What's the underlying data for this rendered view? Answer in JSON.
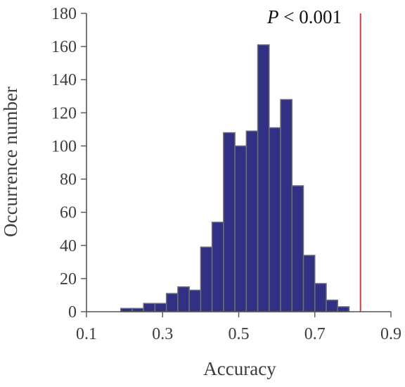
{
  "chart_data": {
    "type": "bar",
    "title": "",
    "xlabel": "Accuracy",
    "ylabel": "Occurrence number",
    "xlim": [
      0.1,
      0.9
    ],
    "ylim": [
      0,
      180
    ],
    "xticks": [
      0.1,
      0.3,
      0.5,
      0.7,
      0.9
    ],
    "xtick_labels": [
      "0.1",
      "0.3",
      "0.5",
      "0.7",
      "0.9"
    ],
    "yticks": [
      0,
      20,
      40,
      60,
      80,
      100,
      120,
      140,
      160,
      180
    ],
    "ytick_labels": [
      "0",
      "20",
      "40",
      "60",
      "80",
      "100",
      "120",
      "140",
      "160",
      "180"
    ],
    "bins": [
      {
        "start": 0.19,
        "end": 0.22,
        "value": 2
      },
      {
        "start": 0.22,
        "end": 0.25,
        "value": 2
      },
      {
        "start": 0.25,
        "end": 0.28,
        "value": 5
      },
      {
        "start": 0.28,
        "end": 0.31,
        "value": 5
      },
      {
        "start": 0.31,
        "end": 0.34,
        "value": 11
      },
      {
        "start": 0.34,
        "end": 0.37,
        "value": 15
      },
      {
        "start": 0.37,
        "end": 0.4,
        "value": 13
      },
      {
        "start": 0.4,
        "end": 0.43,
        "value": 39
      },
      {
        "start": 0.43,
        "end": 0.46,
        "value": 54
      },
      {
        "start": 0.46,
        "end": 0.49,
        "value": 108
      },
      {
        "start": 0.49,
        "end": 0.52,
        "value": 100
      },
      {
        "start": 0.52,
        "end": 0.55,
        "value": 109
      },
      {
        "start": 0.55,
        "end": 0.58,
        "value": 161
      },
      {
        "start": 0.58,
        "end": 0.61,
        "value": 111
      },
      {
        "start": 0.61,
        "end": 0.64,
        "value": 128
      },
      {
        "start": 0.64,
        "end": 0.67,
        "value": 76
      },
      {
        "start": 0.67,
        "end": 0.7,
        "value": 34
      },
      {
        "start": 0.7,
        "end": 0.73,
        "value": 17
      },
      {
        "start": 0.73,
        "end": 0.76,
        "value": 7
      },
      {
        "start": 0.76,
        "end": 0.79,
        "value": 3
      }
    ],
    "reference_line": {
      "x": 0.82
    },
    "annotation": {
      "italic_prefix": "P",
      "text": " < 0.001"
    },
    "colors": {
      "bar_fill": "#303084",
      "bar_stroke": "#6f6f6f",
      "axis": "#555555",
      "reference_line": "#d53a3a"
    },
    "grid": false
  }
}
